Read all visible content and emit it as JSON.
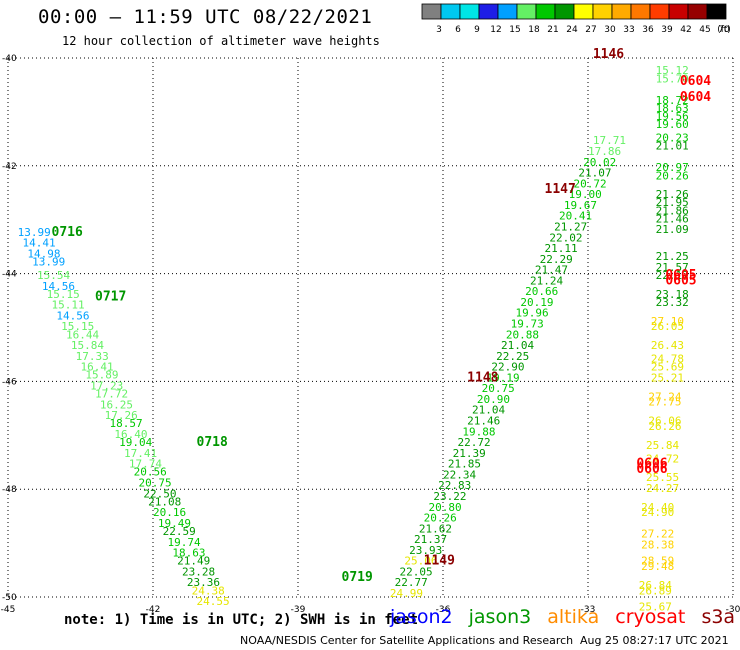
{
  "header": {
    "title": "00:00 – 11:59 UTC 08/22/2021",
    "subtitle": "12 hour collection of altimeter wave heights"
  },
  "colorbar": {
    "unit": "(ft)",
    "ticks": [
      "3",
      "6",
      "9",
      "12",
      "15",
      "18",
      "21",
      "24",
      "27",
      "30",
      "33",
      "36",
      "39",
      "42",
      "45",
      "70"
    ],
    "colors": [
      "#808080",
      "#00c8f0",
      "#00e6e6",
      "#1e1ee6",
      "#00a0ff",
      "#64f064",
      "#00c800",
      "#009600",
      "#ffff00",
      "#ffd200",
      "#ffaa00",
      "#ff7800",
      "#ff3c00",
      "#c80000",
      "#960000",
      "#000000"
    ]
  },
  "footer": {
    "note": "note: 1) Time is in UTC; 2) SWH is in feet",
    "credit": "NOAA/NESDIS Center for Satellite Applications and Research",
    "stamp": "Aug 25 08:27:17 UTC 2021",
    "legend": [
      {
        "name": "jason2",
        "color": "#0000ff"
      },
      {
        "name": "jason3",
        "color": "#009600"
      },
      {
        "name": "altika",
        "color": "#ff8c00"
      },
      {
        "name": "cryosat",
        "color": "#ff0000"
      },
      {
        "name": "s3a",
        "color": "#8b0000"
      }
    ]
  },
  "chart_data": {
    "type": "scatter",
    "title": "00:00 – 11:59 UTC 08/22/2021",
    "subtitle": "12 hour collection of altimeter wave heights",
    "xlim": [
      -45,
      -30
    ],
    "ylim": [
      -50,
      -40
    ],
    "xticks": [
      -45,
      -42,
      -39,
      -36,
      -33,
      -30
    ],
    "yticks": [
      -40,
      -42,
      -44,
      -46,
      -48,
      -50
    ],
    "xtick_labels": [
      "-45",
      "-42",
      "-39",
      "-36",
      "-33",
      "-30"
    ],
    "ytick_labels": [
      "-40",
      "-42",
      "-44",
      "-46",
      "-48",
      "-50"
    ],
    "grid": true,
    "time_labels": [
      {
        "text": "0716",
        "lon": -44.1,
        "lat": -43.3,
        "color": "#009600"
      },
      {
        "text": "0717",
        "lon": -43.2,
        "lat": -44.5,
        "color": "#009600"
      },
      {
        "text": "0718",
        "lon": -41.1,
        "lat": -47.2,
        "color": "#009600"
      },
      {
        "text": "0719",
        "lon": -38.1,
        "lat": -49.7,
        "color": "#009600"
      },
      {
        "text": "1146",
        "lon": -32.9,
        "lat": -40.0,
        "color": "#8b0000"
      },
      {
        "text": "1147",
        "lon": -33.9,
        "lat": -42.5,
        "color": "#8b0000"
      },
      {
        "text": "1148",
        "lon": -35.5,
        "lat": -46.0,
        "color": "#8b0000"
      },
      {
        "text": "1149",
        "lon": -36.4,
        "lat": -49.4,
        "color": "#8b0000"
      },
      {
        "text": "0604",
        "lon": -31.1,
        "lat": -40.5,
        "color": "#ff0000"
      },
      {
        "text": "0604",
        "lon": -31.1,
        "lat": -40.8,
        "color": "#ff0000"
      },
      {
        "text": "0605",
        "lon": -31.4,
        "lat": -44.1,
        "color": "#ff0000"
      },
      {
        "text": "0605",
        "lon": -31.4,
        "lat": -44.2,
        "color": "#ff0000"
      },
      {
        "text": "0606",
        "lon": -32.0,
        "lat": -47.6,
        "color": "#ff0000"
      },
      {
        "text": "0606",
        "lon": -32.0,
        "lat": -47.7,
        "color": "#ff0000"
      }
    ],
    "series": [
      {
        "satellite": "jason3",
        "points": [
          {
            "lon": -44.8,
            "lat": -43.3,
            "v": "13.99"
          },
          {
            "lon": -44.7,
            "lat": -43.5,
            "v": "14.41"
          },
          {
            "lon": -44.6,
            "lat": -43.7,
            "v": "14.98"
          },
          {
            "lon": -44.5,
            "lat": -43.85,
            "v": "13.99"
          },
          {
            "lon": -44.4,
            "lat": -44.1,
            "v": "15.54"
          },
          {
            "lon": -44.3,
            "lat": -44.3,
            "v": "14.56"
          },
          {
            "lon": -44.2,
            "lat": -44.45,
            "v": "15.15"
          },
          {
            "lon": -44.1,
            "lat": -44.65,
            "v": "15.11"
          },
          {
            "lon": -44.0,
            "lat": -44.85,
            "v": "14.56"
          },
          {
            "lon": -43.9,
            "lat": -45.05,
            "v": "15.15"
          },
          {
            "lon": -43.8,
            "lat": -45.2,
            "v": "16.44"
          },
          {
            "lon": -43.7,
            "lat": -45.4,
            "v": "15.84"
          },
          {
            "lon": -43.6,
            "lat": -45.6,
            "v": "17.33"
          },
          {
            "lon": -43.5,
            "lat": -45.8,
            "v": "16.41"
          },
          {
            "lon": -43.4,
            "lat": -45.95,
            "v": "15.89"
          },
          {
            "lon": -43.3,
            "lat": -46.15,
            "v": "17.23"
          },
          {
            "lon": -43.2,
            "lat": -46.3,
            "v": "17.72"
          },
          {
            "lon": -43.1,
            "lat": -46.5,
            "v": "16.25"
          },
          {
            "lon": -43.0,
            "lat": -46.7,
            "v": "17.26"
          },
          {
            "lon": -42.9,
            "lat": -46.85,
            "v": "18.57"
          },
          {
            "lon": -42.8,
            "lat": -47.05,
            "v": "16.40"
          },
          {
            "lon": -42.7,
            "lat": -47.2,
            "v": "19.04"
          },
          {
            "lon": -42.6,
            "lat": -47.4,
            "v": "17.41"
          },
          {
            "lon": -42.5,
            "lat": -47.6,
            "v": "17.74"
          },
          {
            "lon": -42.4,
            "lat": -47.75,
            "v": "20.56"
          },
          {
            "lon": -42.3,
            "lat": -47.95,
            "v": "20.75"
          },
          {
            "lon": -42.2,
            "lat": -48.15,
            "v": "22.50"
          },
          {
            "lon": -42.1,
            "lat": -48.3,
            "v": "21.08"
          },
          {
            "lon": -42.0,
            "lat": -48.5,
            "v": "20.16"
          },
          {
            "lon": -41.9,
            "lat": -48.7,
            "v": "19.49"
          },
          {
            "lon": -41.8,
            "lat": -48.85,
            "v": "22.59"
          },
          {
            "lon": -41.7,
            "lat": -49.05,
            "v": "19.74"
          },
          {
            "lon": -41.6,
            "lat": -49.25,
            "v": "18.63"
          },
          {
            "lon": -41.5,
            "lat": -49.4,
            "v": "21.49"
          },
          {
            "lon": -41.4,
            "lat": -49.6,
            "v": "23.28"
          },
          {
            "lon": -41.3,
            "lat": -49.8,
            "v": "23.36"
          },
          {
            "lon": -41.2,
            "lat": -49.95,
            "v": "24.38"
          },
          {
            "lon": -41.1,
            "lat": -50.15,
            "v": "24.55"
          }
        ]
      },
      {
        "satellite": "s3a",
        "points": [
          {
            "lon": -37.1,
            "lat": -50.0,
            "v": "24.99"
          },
          {
            "lon": -37.0,
            "lat": -49.8,
            "v": "22.77"
          },
          {
            "lon": -36.9,
            "lat": -49.6,
            "v": "22.05"
          },
          {
            "lon": -36.8,
            "lat": -49.4,
            "v": "25.06"
          },
          {
            "lon": -36.7,
            "lat": -49.2,
            "v": "23.93"
          },
          {
            "lon": -36.6,
            "lat": -49.0,
            "v": "21.37"
          },
          {
            "lon": -36.5,
            "lat": -48.8,
            "v": "21.62"
          },
          {
            "lon": -36.4,
            "lat": -48.6,
            "v": "20.26"
          },
          {
            "lon": -36.3,
            "lat": -48.4,
            "v": "20.80"
          },
          {
            "lon": -36.2,
            "lat": -48.2,
            "v": "23.22"
          },
          {
            "lon": -36.1,
            "lat": -48.0,
            "v": "22.83"
          },
          {
            "lon": -36.0,
            "lat": -47.8,
            "v": "22.34"
          },
          {
            "lon": -35.9,
            "lat": -47.6,
            "v": "21.85"
          },
          {
            "lon": -35.8,
            "lat": -47.4,
            "v": "21.39"
          },
          {
            "lon": -35.7,
            "lat": -47.2,
            "v": "22.72"
          },
          {
            "lon": -35.6,
            "lat": -47.0,
            "v": "19.88"
          },
          {
            "lon": -35.5,
            "lat": -46.8,
            "v": "21.46"
          },
          {
            "lon": -35.4,
            "lat": -46.6,
            "v": "21.04"
          },
          {
            "lon": -35.3,
            "lat": -46.4,
            "v": "20.90"
          },
          {
            "lon": -35.2,
            "lat": -46.2,
            "v": "20.75"
          },
          {
            "lon": -35.1,
            "lat": -46.0,
            "v": "19.19"
          },
          {
            "lon": -35.0,
            "lat": -45.8,
            "v": "22.90"
          },
          {
            "lon": -34.9,
            "lat": -45.6,
            "v": "22.25"
          },
          {
            "lon": -34.8,
            "lat": -45.4,
            "v": "21.04"
          },
          {
            "lon": -34.7,
            "lat": -45.2,
            "v": "20.88"
          },
          {
            "lon": -34.6,
            "lat": -45.0,
            "v": "19.73"
          },
          {
            "lon": -34.5,
            "lat": -44.8,
            "v": "19.96"
          },
          {
            "lon": -34.4,
            "lat": -44.6,
            "v": "20.19"
          },
          {
            "lon": -34.3,
            "lat": -44.4,
            "v": "20.66"
          },
          {
            "lon": -34.2,
            "lat": -44.2,
            "v": "21.24"
          },
          {
            "lon": -34.1,
            "lat": -44.0,
            "v": "21.47"
          },
          {
            "lon": -34.0,
            "lat": -43.8,
            "v": "22.29"
          },
          {
            "lon": -33.9,
            "lat": -43.6,
            "v": "21.11"
          },
          {
            "lon": -33.8,
            "lat": -43.4,
            "v": "22.02"
          },
          {
            "lon": -33.7,
            "lat": -43.2,
            "v": "21.27"
          },
          {
            "lon": -33.6,
            "lat": -43.0,
            "v": "20.41"
          },
          {
            "lon": -33.5,
            "lat": -42.8,
            "v": "19.67"
          },
          {
            "lon": -33.4,
            "lat": -42.6,
            "v": "19.00"
          },
          {
            "lon": -33.3,
            "lat": -42.4,
            "v": "20.72"
          },
          {
            "lon": -33.2,
            "lat": -42.2,
            "v": "21.07"
          },
          {
            "lon": -33.1,
            "lat": -42.0,
            "v": "20.02"
          },
          {
            "lon": -33.0,
            "lat": -41.8,
            "v": "17.86"
          },
          {
            "lon": -32.9,
            "lat": -41.6,
            "v": "17.71"
          }
        ]
      },
      {
        "satellite": "cryosat",
        "points": [
          {
            "lon": -31.6,
            "lat": -40.3,
            "v": "15.12"
          },
          {
            "lon": -31.6,
            "lat": -40.45,
            "v": "15.70"
          },
          {
            "lon": -31.6,
            "lat": -40.85,
            "v": "18.72"
          },
          {
            "lon": -31.6,
            "lat": -41.0,
            "v": "18.63"
          },
          {
            "lon": -31.6,
            "lat": -41.15,
            "v": "19.56"
          },
          {
            "lon": -31.6,
            "lat": -41.3,
            "v": "19.60"
          },
          {
            "lon": -31.6,
            "lat": -41.55,
            "v": "20.23"
          },
          {
            "lon": -31.6,
            "lat": -41.7,
            "v": "21.01"
          },
          {
            "lon": -31.6,
            "lat": -42.1,
            "v": "20.97"
          },
          {
            "lon": -31.6,
            "lat": -42.25,
            "v": "20.26"
          },
          {
            "lon": -31.6,
            "lat": -42.6,
            "v": "21.26"
          },
          {
            "lon": -31.6,
            "lat": -42.75,
            "v": "21.95"
          },
          {
            "lon": -31.6,
            "lat": -42.9,
            "v": "21.86"
          },
          {
            "lon": -31.6,
            "lat": -43.05,
            "v": "21.46"
          },
          {
            "lon": -31.6,
            "lat": -43.25,
            "v": "21.09"
          },
          {
            "lon": -31.6,
            "lat": -43.75,
            "v": "21.25"
          },
          {
            "lon": -31.6,
            "lat": -43.95,
            "v": "21.57"
          },
          {
            "lon": -31.6,
            "lat": -44.1,
            "v": "22.17"
          },
          {
            "lon": -31.6,
            "lat": -44.45,
            "v": "23.18"
          },
          {
            "lon": -31.6,
            "lat": -44.6,
            "v": "23.32"
          },
          {
            "lon": -31.7,
            "lat": -44.95,
            "v": "27.10"
          },
          {
            "lon": -31.7,
            "lat": -45.05,
            "v": "26.05"
          },
          {
            "lon": -31.7,
            "lat": -45.4,
            "v": "26.43"
          },
          {
            "lon": -31.7,
            "lat": -45.65,
            "v": "24.78"
          },
          {
            "lon": -31.7,
            "lat": -45.8,
            "v": "25.69"
          },
          {
            "lon": -31.7,
            "lat": -46.0,
            "v": "25.21"
          },
          {
            "lon": -31.75,
            "lat": -46.35,
            "v": "27.24"
          },
          {
            "lon": -31.75,
            "lat": -46.45,
            "v": "27.75"
          },
          {
            "lon": -31.75,
            "lat": -46.8,
            "v": "26.06"
          },
          {
            "lon": -31.75,
            "lat": -46.9,
            "v": "26.26"
          },
          {
            "lon": -31.8,
            "lat": -47.25,
            "v": "25.84"
          },
          {
            "lon": -31.8,
            "lat": -47.5,
            "v": "24.72"
          },
          {
            "lon": -31.8,
            "lat": -47.85,
            "v": "25.55"
          },
          {
            "lon": -31.8,
            "lat": -48.05,
            "v": "24.27"
          },
          {
            "lon": -31.9,
            "lat": -48.4,
            "v": "24.40"
          },
          {
            "lon": -31.9,
            "lat": -48.5,
            "v": "24.90"
          },
          {
            "lon": -31.9,
            "lat": -48.9,
            "v": "27.22"
          },
          {
            "lon": -31.9,
            "lat": -49.1,
            "v": "28.38"
          },
          {
            "lon": -31.9,
            "lat": -49.4,
            "v": "28.59"
          },
          {
            "lon": -31.9,
            "lat": -49.5,
            "v": "29.48"
          },
          {
            "lon": -31.95,
            "lat": -49.85,
            "v": "26.84"
          },
          {
            "lon": -31.95,
            "lat": -49.95,
            "v": "26.89"
          },
          {
            "lon": -31.95,
            "lat": -50.25,
            "v": "25.67"
          }
        ]
      }
    ]
  }
}
